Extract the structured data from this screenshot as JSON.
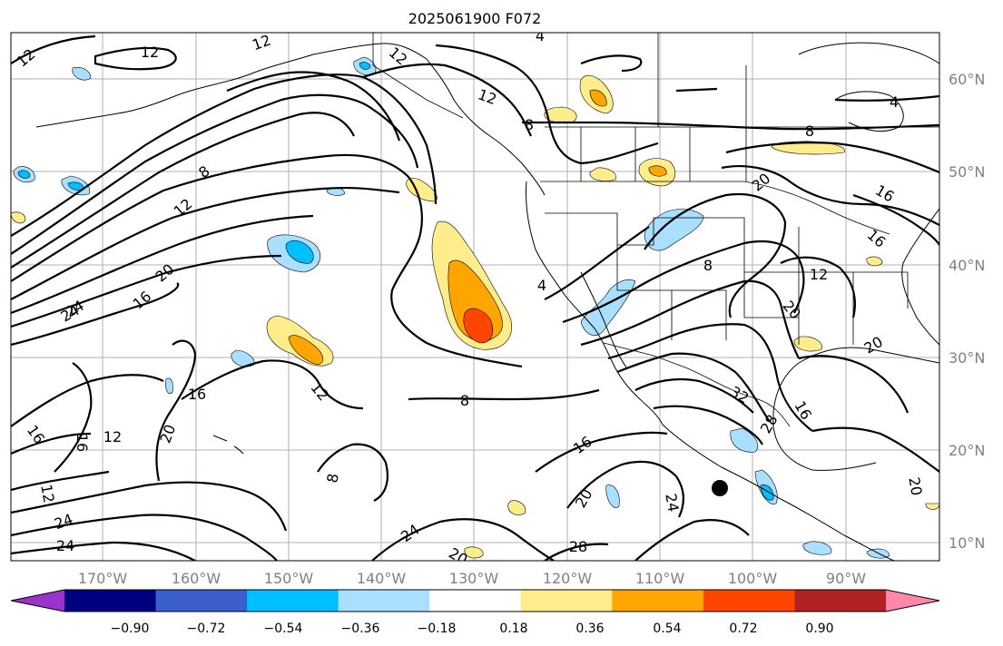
{
  "title": "2025061900 F072",
  "map": {
    "lon_ticks": [
      "170°W",
      "160°W",
      "150°W",
      "140°W",
      "130°W",
      "120°W",
      "110°W",
      "100°W",
      "90°W"
    ],
    "lat_ticks": [
      "60°N",
      "50°N",
      "40°N",
      "30°N",
      "20°N",
      "10°N"
    ],
    "contour_labels": [
      "12",
      "12",
      "12",
      "4",
      "12",
      "12",
      "8",
      "8",
      "12",
      "4",
      "8",
      "16",
      "16",
      "20",
      "24",
      "16",
      "20",
      "24",
      "4",
      "12",
      "8",
      "8",
      "16",
      "12",
      "16",
      "16",
      "12",
      "8",
      "12",
      "24",
      "24",
      "24",
      "20",
      "16",
      "20",
      "32",
      "28",
      "16",
      "20",
      "20",
      "24",
      "28",
      "20",
      "20"
    ],
    "marker": "typhoon-center-dot"
  },
  "colorbar": {
    "ticks": [
      "−0.90",
      "−0.72",
      "−0.54",
      "−0.36",
      "−0.18",
      "0.18",
      "0.36",
      "0.54",
      "0.72",
      "0.90"
    ],
    "colors": [
      "#9a33cc",
      "#000080",
      "#3a5fcd",
      "#00bfff",
      "#aae0ff",
      "#ffffff",
      "#ffec8b",
      "#ffa500",
      "#ff4500",
      "#b22222",
      "#ff88aa"
    ]
  }
}
